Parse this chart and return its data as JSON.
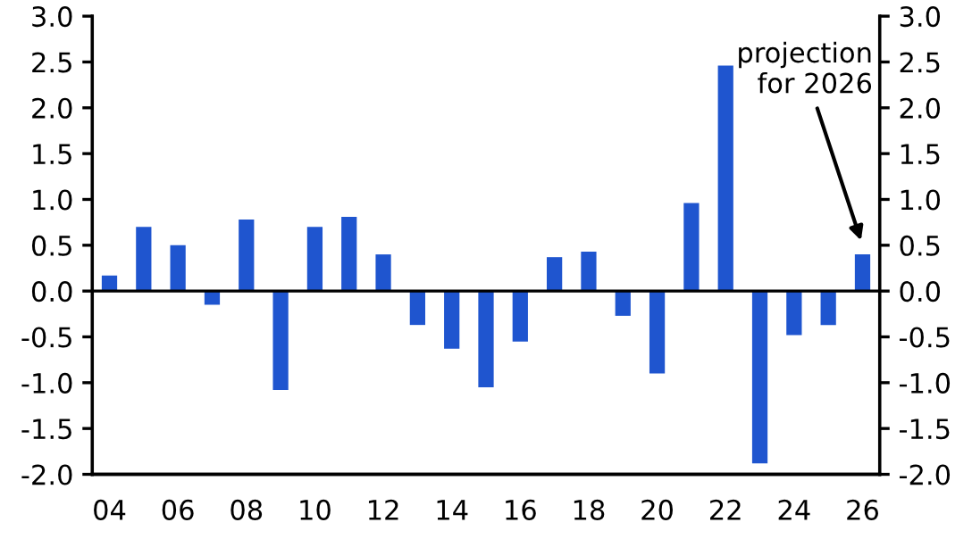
{
  "chart_data": {
    "type": "bar",
    "categories": [
      "04",
      null,
      "06",
      null,
      "08",
      null,
      "10",
      null,
      "12",
      null,
      "14",
      null,
      "16",
      null,
      "18",
      null,
      "20",
      null,
      "22",
      null,
      "24",
      null,
      "26"
    ],
    "series": [
      {
        "color": "#1f55cf",
        "values": [
          0.17,
          0.7,
          0.5,
          -0.15,
          0.78,
          -1.08,
          0.7,
          0.81,
          0.4,
          -0.37,
          -0.63,
          -1.05,
          -0.55,
          0.37,
          0.43,
          -0.27,
          -0.9,
          0.96,
          2.46,
          -1.88,
          -0.48,
          -0.37,
          0.4
        ]
      }
    ],
    "ylim": [
      -2.0,
      3.0
    ],
    "yticks": [
      {
        "value": -2.0,
        "label": "-2.0"
      },
      {
        "value": -1.5,
        "label": "-1.5"
      },
      {
        "value": -1.0,
        "label": "-1.0"
      },
      {
        "value": -0.5,
        "label": "-0.5"
      },
      {
        "value": 0.0,
        "label": "0.0"
      },
      {
        "value": 0.5,
        "label": "0.5"
      },
      {
        "value": 1.0,
        "label": "1.0"
      },
      {
        "value": 1.5,
        "label": "1.5"
      },
      {
        "value": 2.0,
        "label": "2.0"
      },
      {
        "value": 2.5,
        "label": "2.5"
      },
      {
        "value": 3.0,
        "label": "3.0"
      }
    ],
    "y2lim": [
      -2.0,
      3.0
    ],
    "y2ticks": [
      {
        "value": -2.0,
        "label": "-2.0"
      },
      {
        "value": -1.5,
        "label": "-1.5"
      },
      {
        "value": -1.0,
        "label": "-1.0"
      },
      {
        "value": -0.5,
        "label": "-0.5"
      },
      {
        "value": 0.0,
        "label": "0.0"
      },
      {
        "value": 0.5,
        "label": "0.5"
      },
      {
        "value": 1.0,
        "label": "1.0"
      },
      {
        "value": 1.5,
        "label": "1.5"
      },
      {
        "value": 2.0,
        "label": "2.0"
      },
      {
        "value": 2.5,
        "label": "2.5"
      },
      {
        "value": 3.0,
        "label": "3.0"
      }
    ],
    "annotations": [
      "projection\nfor 2026"
    ],
    "legend": false
  }
}
